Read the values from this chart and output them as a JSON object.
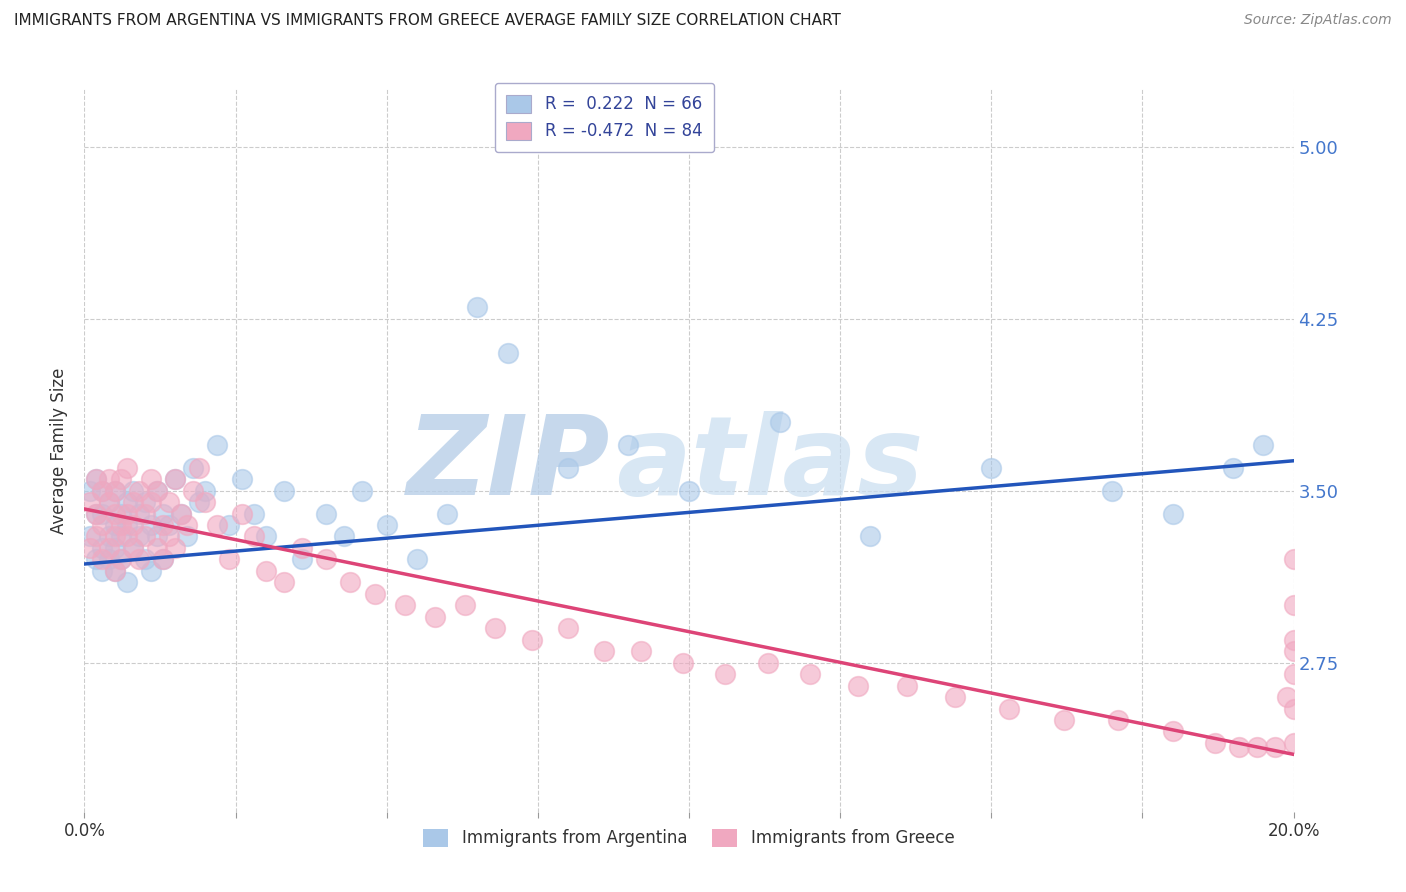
{
  "title": "IMMIGRANTS FROM ARGENTINA VS IMMIGRANTS FROM GREECE AVERAGE FAMILY SIZE CORRELATION CHART",
  "source": "Source: ZipAtlas.com",
  "ylabel": "Average Family Size",
  "xlim": [
    0.0,
    0.2
  ],
  "ylim": [
    2.1,
    5.25
  ],
  "yticks": [
    2.75,
    3.5,
    4.25,
    5.0
  ],
  "xticks": [
    0.0,
    0.025,
    0.05,
    0.075,
    0.1,
    0.125,
    0.15,
    0.175,
    0.2
  ],
  "background_color": "#ffffff",
  "grid_color": "#cccccc",
  "argentina_color": "#aac8e8",
  "greece_color": "#f0a8c0",
  "argentina_line_color": "#2255bb",
  "greece_line_color": "#dd4477",
  "R_argentina": 0.222,
  "N_argentina": 66,
  "R_greece": -0.472,
  "N_greece": 84,
  "watermark": "ZIPatlas",
  "watermark_color": "#ccddf0",
  "legend_label_argentina": "Immigrants from Argentina",
  "legend_label_greece": "Immigrants from Greece",
  "argentina_scatter_x": [
    0.001,
    0.001,
    0.002,
    0.002,
    0.002,
    0.003,
    0.003,
    0.003,
    0.003,
    0.004,
    0.004,
    0.004,
    0.005,
    0.005,
    0.005,
    0.005,
    0.006,
    0.006,
    0.006,
    0.007,
    0.007,
    0.007,
    0.008,
    0.008,
    0.009,
    0.009,
    0.01,
    0.01,
    0.011,
    0.011,
    0.012,
    0.012,
    0.013,
    0.013,
    0.014,
    0.015,
    0.016,
    0.017,
    0.018,
    0.019,
    0.02,
    0.022,
    0.024,
    0.026,
    0.028,
    0.03,
    0.033,
    0.036,
    0.04,
    0.043,
    0.046,
    0.05,
    0.055,
    0.06,
    0.065,
    0.07,
    0.08,
    0.09,
    0.1,
    0.115,
    0.13,
    0.15,
    0.17,
    0.18,
    0.19,
    0.195
  ],
  "argentina_scatter_y": [
    3.3,
    3.5,
    3.2,
    3.4,
    3.55,
    3.25,
    3.4,
    3.15,
    3.5,
    3.3,
    3.45,
    3.2,
    3.35,
    3.25,
    3.5,
    3.15,
    3.4,
    3.3,
    3.2,
    3.45,
    3.35,
    3.1,
    3.25,
    3.5,
    3.3,
    3.4,
    3.2,
    3.45,
    3.35,
    3.15,
    3.5,
    3.3,
    3.4,
    3.2,
    3.35,
    3.55,
    3.4,
    3.3,
    3.6,
    3.45,
    3.5,
    3.7,
    3.35,
    3.55,
    3.4,
    3.3,
    3.5,
    3.2,
    3.4,
    3.3,
    3.5,
    3.35,
    3.2,
    3.4,
    4.3,
    4.1,
    3.6,
    3.7,
    3.5,
    3.8,
    3.3,
    3.6,
    3.5,
    3.4,
    3.6,
    3.7
  ],
  "greece_scatter_x": [
    0.001,
    0.001,
    0.002,
    0.002,
    0.002,
    0.003,
    0.003,
    0.003,
    0.004,
    0.004,
    0.004,
    0.005,
    0.005,
    0.005,
    0.005,
    0.006,
    0.006,
    0.006,
    0.007,
    0.007,
    0.007,
    0.008,
    0.008,
    0.008,
    0.009,
    0.009,
    0.01,
    0.01,
    0.011,
    0.011,
    0.012,
    0.012,
    0.013,
    0.013,
    0.014,
    0.014,
    0.015,
    0.015,
    0.016,
    0.017,
    0.018,
    0.019,
    0.02,
    0.022,
    0.024,
    0.026,
    0.028,
    0.03,
    0.033,
    0.036,
    0.04,
    0.044,
    0.048,
    0.053,
    0.058,
    0.063,
    0.068,
    0.074,
    0.08,
    0.086,
    0.092,
    0.099,
    0.106,
    0.113,
    0.12,
    0.128,
    0.136,
    0.144,
    0.153,
    0.162,
    0.171,
    0.18,
    0.187,
    0.191,
    0.194,
    0.197,
    0.199,
    0.2,
    0.2,
    0.2,
    0.2,
    0.2,
    0.2,
    0.2
  ],
  "greece_scatter_y": [
    3.45,
    3.25,
    3.55,
    3.3,
    3.4,
    3.2,
    3.5,
    3.35,
    3.45,
    3.25,
    3.55,
    3.3,
    3.5,
    3.15,
    3.4,
    3.35,
    3.55,
    3.2,
    3.4,
    3.3,
    3.6,
    3.25,
    3.45,
    3.35,
    3.5,
    3.2,
    3.4,
    3.3,
    3.55,
    3.45,
    3.25,
    3.5,
    3.35,
    3.2,
    3.45,
    3.3,
    3.55,
    3.25,
    3.4,
    3.35,
    3.5,
    3.6,
    3.45,
    3.35,
    3.2,
    3.4,
    3.3,
    3.15,
    3.1,
    3.25,
    3.2,
    3.1,
    3.05,
    3.0,
    2.95,
    3.0,
    2.9,
    2.85,
    2.9,
    2.8,
    2.8,
    2.75,
    2.7,
    2.75,
    2.7,
    2.65,
    2.65,
    2.6,
    2.55,
    2.5,
    2.5,
    2.45,
    2.4,
    2.38,
    2.38,
    2.38,
    2.6,
    2.8,
    3.0,
    3.2,
    2.55,
    2.7,
    2.85,
    2.4
  ]
}
